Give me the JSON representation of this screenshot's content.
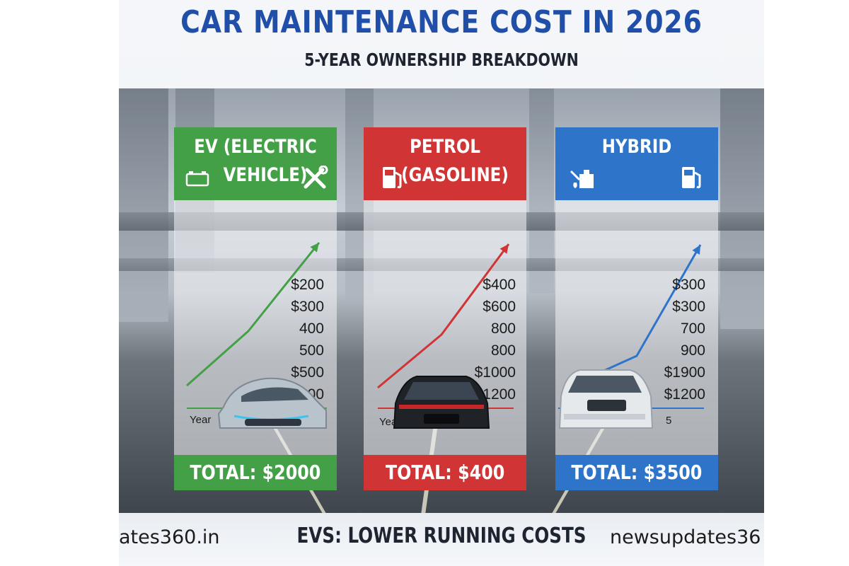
{
  "title": "CAR MAINTENANCE COST IN 2026",
  "subtitle": "5-YEAR OWNERSHIP BREAKDOWN",
  "footer": "EVS: LOWER RUNNING COSTS",
  "watermark_left": "ates360.in",
  "watermark_right": "newsupdates36",
  "colors": {
    "ev": "#43a047",
    "petrol": "#d03434",
    "hybrid": "#2e74c9",
    "title": "#1f4fa8"
  },
  "chart_data": [
    {
      "type": "line",
      "title": "EV (ELECTRIC VEHICLE)",
      "title_lines": [
        "EV (ELECTRIC",
        "VEHICLE)"
      ],
      "icons": [
        "battery-icon",
        "wrench-screwdriver-icon"
      ],
      "xlabel": "Year",
      "tick_labels": [
        "$200",
        "$300",
        "400",
        "500",
        "$500",
        "$600"
      ],
      "total": "TOTAL: $2000",
      "color": "#43a047"
    },
    {
      "type": "line",
      "title": "PETROL (GASOLINE)",
      "title_lines": [
        "PETROL",
        "(GASOLINE)"
      ],
      "icons": [
        "fuel-pump-icon"
      ],
      "xlabel": "Yea",
      "tick_labels": [
        "$400",
        "$600",
        "800",
        "800",
        "$1000",
        "$1200"
      ],
      "total": "TOTAL: $400",
      "color": "#d03434"
    },
    {
      "type": "line",
      "title": "HYBRID",
      "title_lines": [
        "HYBRID",
        ""
      ],
      "icons": [
        "oil-can-icon",
        "fuel-pump-icon"
      ],
      "xlabel": "5",
      "tick_labels": [
        "$300",
        "$300",
        "700",
        "900",
        "$1900",
        "$1200"
      ],
      "total": "TOTAL: $3500",
      "color": "#2e74c9"
    }
  ]
}
